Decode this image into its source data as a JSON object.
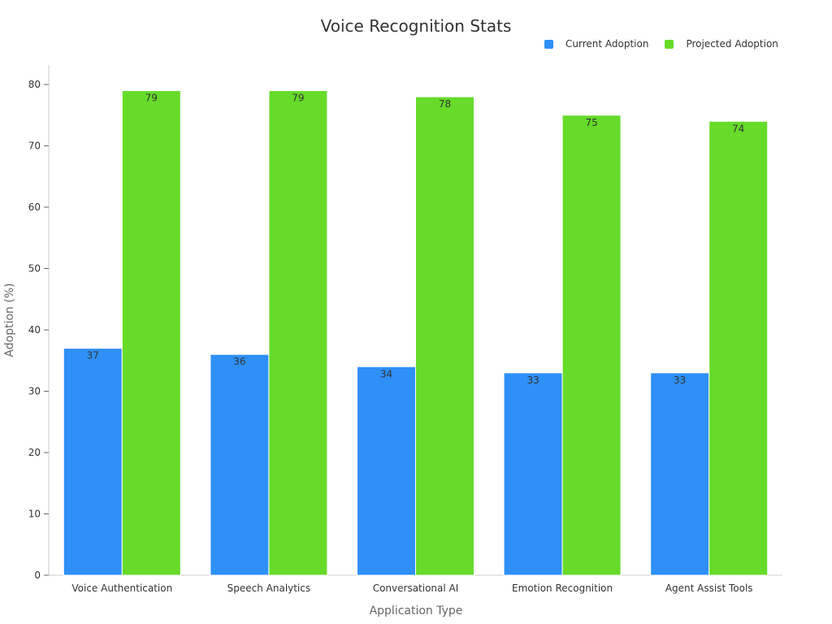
{
  "chart_data": {
    "type": "bar",
    "title": "Voice Recognition Stats",
    "xlabel": "Application Type",
    "ylabel": "Adoption (%)",
    "ylim": [
      0,
      80
    ],
    "yticks": [
      0,
      10,
      20,
      30,
      40,
      50,
      60,
      70,
      80
    ],
    "categories": [
      "Voice Authentication",
      "Speech Analytics",
      "Conversational AI",
      "Emotion Recognition",
      "Agent Assist Tools"
    ],
    "series": [
      {
        "name": "Current Adoption",
        "color": "#2e90f8",
        "values": [
          37,
          36,
          34,
          33,
          33
        ]
      },
      {
        "name": "Projected Adoption",
        "color": "#66db2a",
        "values": [
          79,
          79,
          78,
          75,
          74
        ]
      }
    ],
    "legend_position": "top-right",
    "grid": false
  }
}
